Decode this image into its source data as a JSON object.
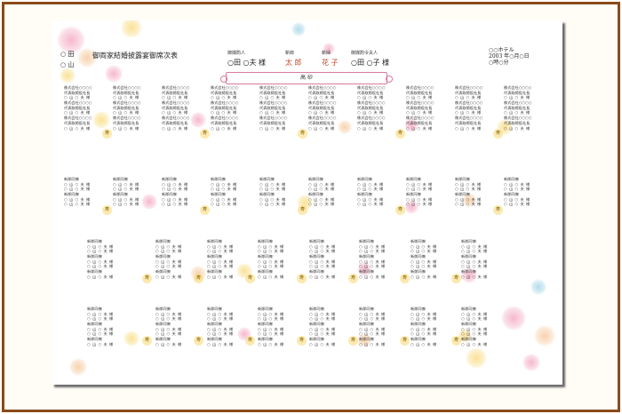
{
  "header": {
    "title": "御両家結婚披露宴御席次表",
    "family_top": "○ 田",
    "family_bottom": "○ 山",
    "groom_matchmaker_label": "御媒酌人",
    "groom_matchmaker_name": "○田 ○夫 様",
    "groom_label": "新郎",
    "groom_name": "太 郎",
    "bride_label": "新婦",
    "bride_name": "花 子",
    "madam_label": "御媒酌令夫人",
    "madam_name": "○田 ○子 様",
    "venue": "○○ホテル",
    "date": "2003 年○月○日",
    "time": "○時○分",
    "head_table": "高 砂"
  },
  "guest_text": {
    "company": "株式会社○○○○",
    "rep": "代表取締役社長",
    "friend": "新郎同僚",
    "guest": "○ 山 ○ 夫  様",
    "seal": "寿"
  },
  "colors": {
    "frame": "#8a4a1a",
    "pink": "#f3a6c0",
    "peach": "#f6c79a",
    "yellow": "#f8da7a",
    "blue": "#9fd3e6"
  }
}
